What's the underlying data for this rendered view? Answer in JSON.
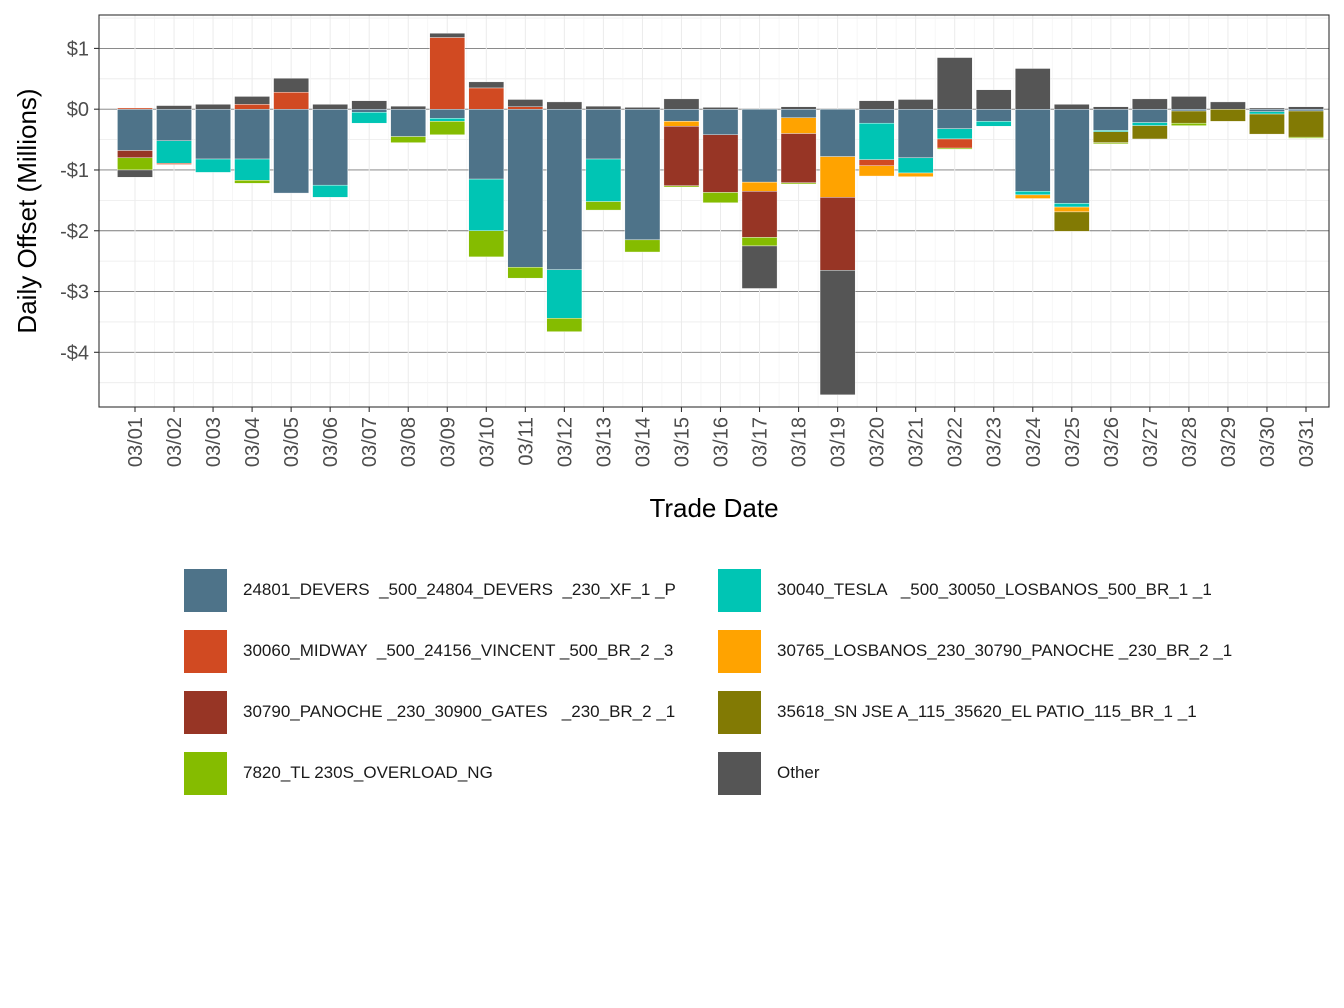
{
  "chart_data": {
    "type": "bar",
    "stacked": true,
    "title": "",
    "xlabel": "Trade Date",
    "ylabel": "Daily Offset (Millions)",
    "ylim": [
      -4.9,
      1.55
    ],
    "yticks": [
      1,
      0,
      -1,
      -2,
      -3,
      -4
    ],
    "ytick_labels": [
      "$1",
      "$0",
      "-$1",
      "-$2",
      "-$3",
      "-$4"
    ],
    "grid": true,
    "legend_position": "bottom",
    "categories": [
      "03/01",
      "03/02",
      "03/03",
      "03/04",
      "03/05",
      "03/06",
      "03/07",
      "03/08",
      "03/09",
      "03/10",
      "03/11",
      "03/12",
      "03/13",
      "03/14",
      "03/15",
      "03/16",
      "03/17",
      "03/18",
      "03/19",
      "03/20",
      "03/21",
      "03/22",
      "03/23",
      "03/24",
      "03/25",
      "03/26",
      "03/27",
      "03/28",
      "03/29",
      "03/30",
      "03/31"
    ],
    "series": [
      {
        "name": "24801_DEVERS  _500_24804_DEVERS  _230_XF_1 _P",
        "color": "#4e7389",
        "values": [
          -0.68,
          -0.52,
          -0.82,
          -0.82,
          -1.38,
          -1.25,
          -0.05,
          -0.45,
          -0.15,
          -1.15,
          -2.6,
          -2.64,
          -0.82,
          -2.15,
          -0.2,
          -0.42,
          -1.2,
          -0.14,
          -0.78,
          -0.23,
          -0.8,
          -0.32,
          -0.2,
          -1.35,
          -1.55,
          -0.35,
          -0.22,
          -0.03,
          0,
          -0.04,
          -0.03
        ]
      },
      {
        "name": "30040_TESLA   _500_30050_LOSBANOS_500_BR_1 _1",
        "color": "#00c5b4",
        "values": [
          0,
          -0.37,
          -0.22,
          -0.35,
          0,
          -0.2,
          -0.18,
          0,
          -0.05,
          -0.85,
          0,
          -0.8,
          -0.7,
          0,
          0,
          0,
          0,
          0,
          0,
          -0.6,
          -0.25,
          -0.17,
          -0.08,
          -0.06,
          -0.06,
          -0.02,
          -0.05,
          0,
          0,
          -0.04,
          0
        ]
      },
      {
        "name": "30060_MIDWAY  _500_24156_VINCENT _500_BR_2 _3",
        "color": "#d14a22",
        "values": [
          0.02,
          -0.02,
          0,
          0.08,
          0.28,
          0,
          0,
          0,
          1.18,
          0.35,
          0.04,
          0,
          0,
          0,
          0,
          0,
          0,
          0,
          0,
          -0.1,
          0,
          -0.15,
          0,
          0,
          0,
          0,
          0,
          0,
          0,
          0,
          0
        ]
      },
      {
        "name": "30765_LOSBANOS_230_30790_PANOCHE _230_BR_2 _1",
        "color": "#ffa300",
        "values": [
          0,
          0,
          0,
          0,
          0,
          0,
          0,
          0,
          0,
          0,
          0,
          0,
          0,
          0,
          -0.08,
          0,
          -0.15,
          -0.26,
          -0.67,
          -0.17,
          -0.06,
          0,
          0,
          -0.06,
          -0.08,
          0,
          0,
          0,
          0,
          0,
          0
        ]
      },
      {
        "name": "30790_PANOCHE _230_30900_GATES   _230_BR_2 _1",
        "color": "#973525",
        "values": [
          -0.12,
          0,
          0,
          0,
          0,
          0,
          0,
          0,
          0,
          0,
          0,
          0,
          0,
          0,
          -0.98,
          -0.95,
          -0.76,
          -0.81,
          -1.2,
          0,
          0,
          0,
          0,
          0,
          0,
          0,
          0,
          0,
          0,
          0,
          0
        ]
      },
      {
        "name": "35618_SN JSE A_115_35620_EL PATIO_115_BR_1 _1",
        "color": "#827a04",
        "values": [
          0,
          0,
          0,
          0,
          0,
          0,
          0,
          0,
          0,
          0,
          0,
          0,
          0,
          0,
          0,
          0,
          0,
          0,
          0,
          0,
          0,
          0,
          0,
          0,
          -0.32,
          -0.18,
          -0.22,
          -0.2,
          -0.2,
          -0.33,
          -0.43
        ]
      },
      {
        "name": "7820_TL 230S_OVERLOAD_NG",
        "color": "#85bc00",
        "values": [
          -0.2,
          0,
          0,
          -0.05,
          0,
          0,
          0,
          -0.1,
          -0.22,
          -0.43,
          -0.18,
          -0.22,
          -0.14,
          -0.2,
          -0.02,
          -0.17,
          -0.14,
          -0.02,
          0,
          0,
          0,
          -0.02,
          0,
          0,
          0,
          -0.02,
          0,
          -0.04,
          0,
          0,
          -0.02
        ]
      },
      {
        "name": "Other",
        "color": "#555555",
        "values": [
          -0.12,
          0.06,
          0.08,
          0.13,
          0.23,
          0.08,
          0.14,
          0.05,
          0.07,
          0.1,
          0.12,
          0.12,
          0.05,
          0.03,
          0.17,
          0.03,
          -0.7,
          0.04,
          -2.05,
          0.14,
          0.16,
          0.85,
          0.32,
          0.67,
          0.08,
          0.04,
          0.17,
          0.21,
          0.12,
          0.02,
          0.04
        ]
      }
    ],
    "legend_order": [
      0,
      1,
      2,
      3,
      4,
      5,
      6,
      7
    ]
  }
}
